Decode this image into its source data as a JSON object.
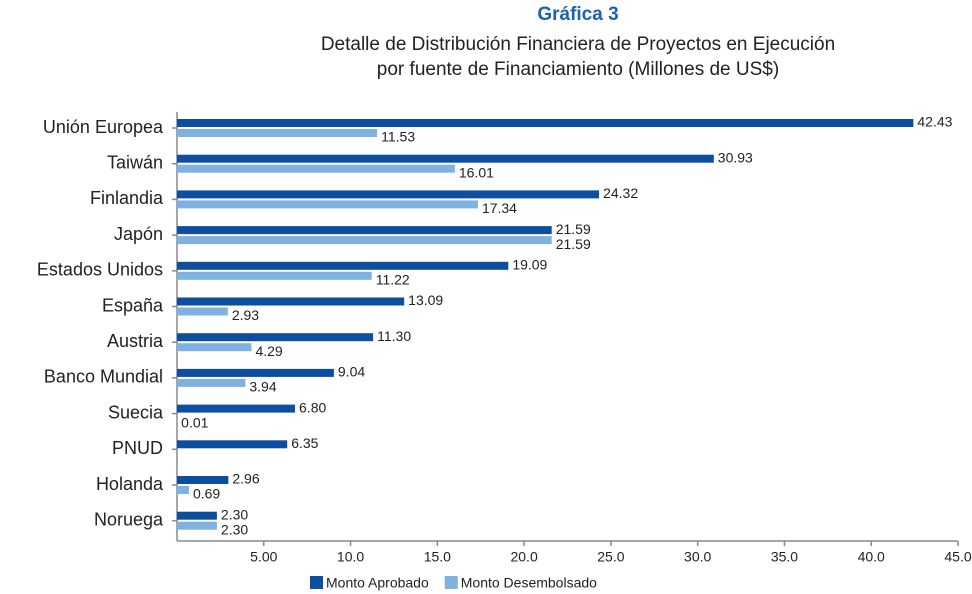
{
  "chart_data": {
    "type": "barh",
    "title": "Gráfica 3",
    "subtitle": [
      "Detalle de Distribución Financiera de Proyectos en Ejecución",
      "por fuente de Financiamiento (Millones de US$)"
    ],
    "categories": [
      "Unión Europea",
      "Taiwán",
      "Finlandia",
      "Japón",
      "Estados Unidos",
      "España",
      "Austria",
      "Banco Mundial",
      "Suecia",
      "PNUD",
      "Holanda",
      "Noruega"
    ],
    "series": [
      {
        "name": "Monto Aprobado",
        "color": "#0d4ea0",
        "values": [
          42.43,
          30.93,
          24.32,
          21.59,
          19.09,
          13.09,
          11.3,
          9.04,
          6.8,
          6.35,
          2.96,
          2.3
        ],
        "value_labels": [
          "42.43",
          "30.93",
          "24.32",
          "21.59",
          "19.09",
          "13.09",
          "11.30",
          "9.04",
          "6.80",
          "6.35",
          "2.96",
          "2.30"
        ]
      },
      {
        "name": "Monto Desembolsado",
        "color": "#7fb2e0",
        "values": [
          11.53,
          16.01,
          17.34,
          21.59,
          11.22,
          2.93,
          4.29,
          3.94,
          0.01,
          null,
          0.69,
          2.3
        ],
        "value_labels": [
          "11.53",
          "16.01",
          "17.34",
          "21.59",
          "11.22",
          "2.93",
          "4.29",
          "3.94",
          "0.01",
          null,
          "0.69",
          "2.30"
        ]
      }
    ],
    "xlim": [
      0,
      45
    ],
    "xticks": [
      {
        "value": 5,
        "label": "5.00"
      },
      {
        "value": 10,
        "label": "10.0"
      },
      {
        "value": 15,
        "label": "15.0"
      },
      {
        "value": 20,
        "label": "20.0"
      },
      {
        "value": 25,
        "label": "25.0"
      },
      {
        "value": 30,
        "label": "30.0"
      },
      {
        "value": 35,
        "label": "35.0"
      },
      {
        "value": 40,
        "label": "40.0"
      },
      {
        "value": 45,
        "label": "45.0"
      }
    ],
    "grid": false,
    "legend": "bottom"
  }
}
